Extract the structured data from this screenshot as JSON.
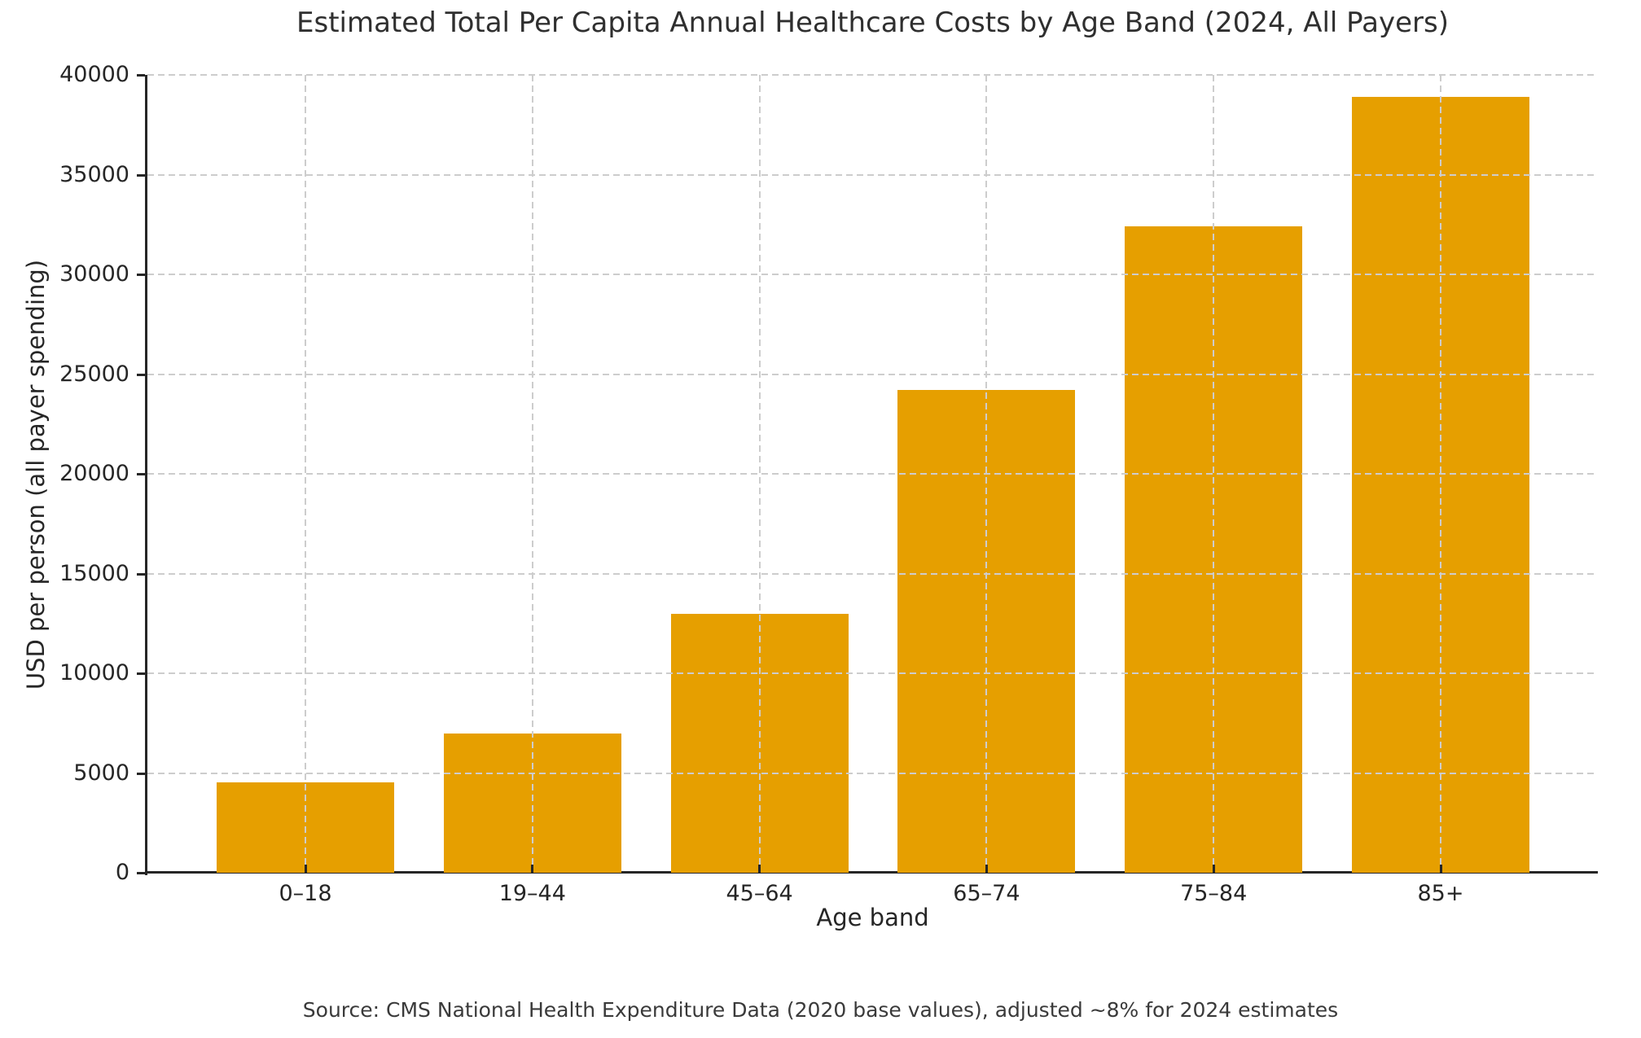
{
  "chart_data": {
    "type": "bar",
    "title": "Estimated Total Per Capita Annual Healthcare Costs by Age Band (2024, All Payers)",
    "xlabel": "Age band",
    "ylabel": "USD per person (all payer spending)",
    "categories": [
      "0–18",
      "19–44",
      "45–64",
      "65–74",
      "75–84",
      "85+"
    ],
    "values": [
      4536,
      6966,
      12960,
      24192,
      32400,
      38880
    ],
    "ylim": [
      0,
      40000
    ],
    "yticks": [
      0,
      5000,
      10000,
      15000,
      20000,
      25000,
      30000,
      35000,
      40000
    ],
    "bar_color": "#E69F00",
    "grid": {
      "style": "dashed",
      "color": "#cdcdcd",
      "axes": "both",
      "over_bars": true
    },
    "legend": "none",
    "source_note": "Source: CMS National Health Expenditure Data (2020 base values), adjusted ~8% for 2024 estimates"
  }
}
